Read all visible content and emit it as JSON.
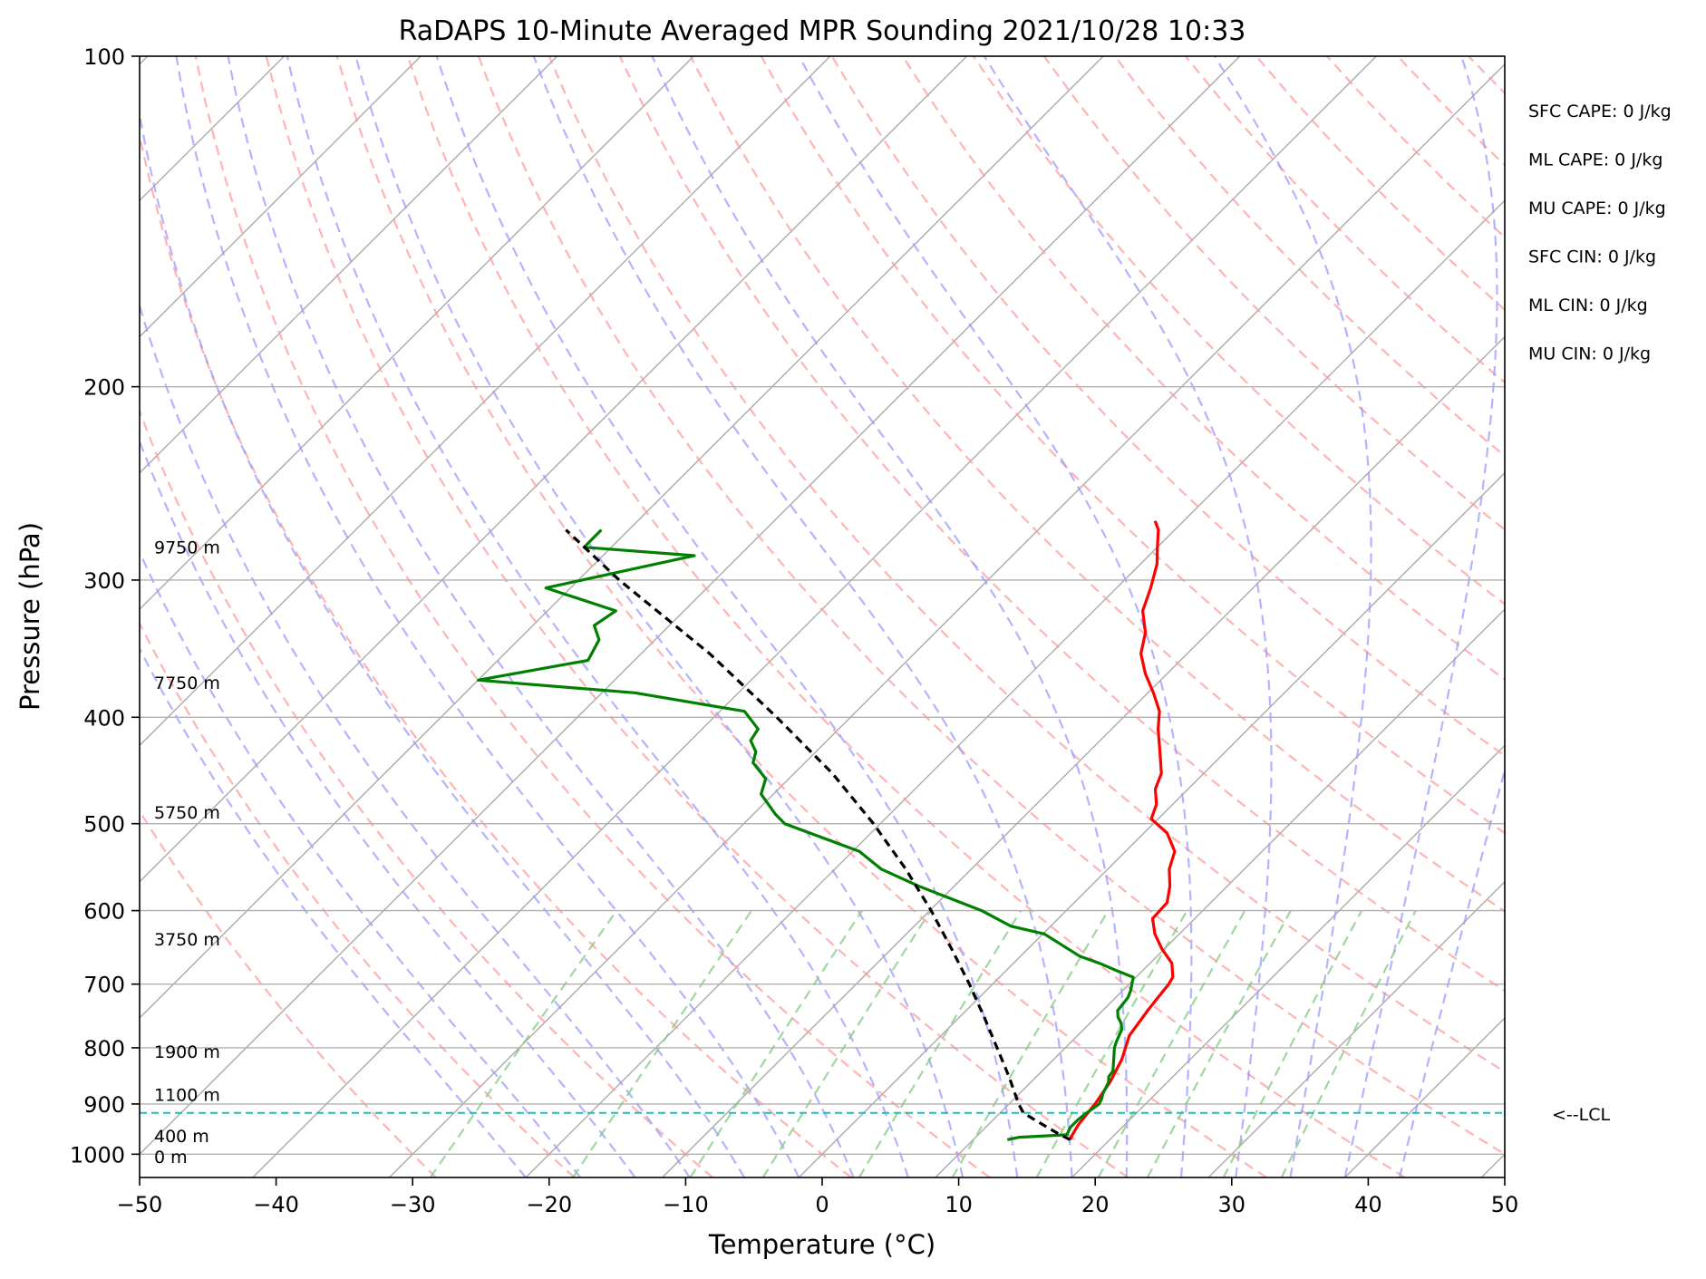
{
  "chart_data": {
    "type": "line",
    "title": "RaDAPS 10-Minute Averaged MPR Sounding 2021/10/28 10:33",
    "xlabel": "Temperature (°C)",
    "ylabel": "Pressure (hPa)",
    "xlim": [
      -50,
      50
    ],
    "ylim": [
      1050,
      100
    ],
    "y_scale": "log",
    "skew": "skew-T",
    "grid": true,
    "x_ticks": [
      -50,
      -40,
      -30,
      -20,
      -10,
      0,
      10,
      20,
      30,
      40,
      50
    ],
    "x_tick_labels": [
      "−50",
      "−40",
      "−30",
      "−20",
      "−10",
      "0",
      "10",
      "20",
      "30",
      "40",
      "50"
    ],
    "y_ticks": [
      100,
      200,
      300,
      400,
      500,
      600,
      700,
      800,
      900,
      1000
    ],
    "y_tick_labels": [
      "100",
      "200",
      "300",
      "400",
      "500",
      "600",
      "700",
      "800",
      "900",
      "1000"
    ],
    "colors": {
      "temperature": "#ff0000",
      "dewpoint": "#008000",
      "parcel": "#000000",
      "isotherm": "#aaaaaa",
      "dry_adiabat": "#ff9999",
      "moist_adiabat": "#9999ff",
      "mixing_ratio": "#88cc88",
      "lcl": "#22bbbb"
    },
    "series": [
      {
        "key": "temperature",
        "p": [
          970,
          960,
          940,
          900,
          860,
          820,
          780,
          740,
          720,
          700,
          690,
          670,
          650,
          630,
          610,
          590,
          570,
          550,
          530,
          510,
          495,
          480,
          465,
          450,
          430,
          410,
          395,
          380,
          365,
          350,
          335,
          320,
          305,
          290,
          280,
          270,
          265
        ],
        "t": [
          17.1,
          16.9,
          16.6,
          16.3,
          15.8,
          15.0,
          13.8,
          13.3,
          13.1,
          12.9,
          12.7,
          11.6,
          9.8,
          8.2,
          6.9,
          6.8,
          5.8,
          4.5,
          3.6,
          1.7,
          -0.5,
          -1.2,
          -2.4,
          -3.1,
          -4.8,
          -6.6,
          -7.8,
          -9.6,
          -11.6,
          -13.4,
          -14.6,
          -16.4,
          -17.5,
          -18.8,
          -20.0,
          -21.2,
          -22.1
        ]
      },
      {
        "key": "dewpoint",
        "p": [
          970,
          965,
          960,
          950,
          945,
          930,
          920,
          900,
          890,
          880,
          860,
          850,
          840,
          800,
          790,
          770,
          760,
          750,
          740,
          720,
          710,
          690,
          680,
          670,
          660,
          630,
          620,
          600,
          590,
          570,
          550,
          530,
          500,
          490,
          470,
          455,
          440,
          430,
          420,
          410,
          395,
          380,
          370,
          355,
          340,
          330,
          320,
          305,
          285,
          280,
          270
        ],
        "t": [
          12.5,
          13.2,
          16.5,
          16.3,
          16.2,
          16.2,
          16.3,
          16.6,
          16.4,
          16.1,
          15.7,
          15.3,
          15.2,
          13.6,
          13.3,
          12.8,
          12.3,
          11.6,
          11.1,
          10.9,
          10.6,
          9.8,
          8.0,
          6.3,
          4.3,
          0.1,
          -2.9,
          -6.2,
          -8.3,
          -12.6,
          -16.6,
          -19.5,
          -27.0,
          -28.4,
          -30.9,
          -31.7,
          -33.8,
          -34.4,
          -35.6,
          -35.9,
          -38.2,
          -47.6,
          -60.0,
          -53.4,
          -54.1,
          -55.5,
          -55.0,
          -61.8,
          -53.3,
          -62.0,
          -62.0
        ]
      },
      {
        "key": "parcel",
        "p": [
          970,
          960,
          940,
          925,
          917,
          900,
          850,
          800,
          750,
          700,
          650,
          600,
          550,
          500,
          450,
          400,
          350,
          300,
          270
        ],
        "t": [
          17.1,
          16.0,
          14.0,
          12.5,
          11.7,
          10.7,
          8.0,
          5.0,
          1.8,
          -1.7,
          -5.6,
          -9.9,
          -14.8,
          -20.5,
          -27.2,
          -35.4,
          -45.0,
          -57.0,
          -64.6
        ]
      }
    ],
    "lcl_pressure": 917,
    "lcl_label": "<--LCL",
    "height_labels": [
      {
        "p": 1005,
        "text": "0 m"
      },
      {
        "p": 962,
        "text": "400 m"
      },
      {
        "p": 882,
        "text": "1100 m"
      },
      {
        "p": 806,
        "text": "1900 m"
      },
      {
        "p": 637,
        "text": "3750 m"
      },
      {
        "p": 488,
        "text": "5750 m"
      },
      {
        "p": 372,
        "text": "7750 m"
      },
      {
        "p": 280,
        "text": "9750 m"
      }
    ],
    "indices": [
      "SFC CAPE: 0 J/kg",
      "ML CAPE: 0 J/kg",
      "MU CAPE: 0 J/kg",
      "SFC CIN: 0 J/kg",
      "ML CIN: 0 J/kg",
      "MU CIN: 0 J/kg"
    ]
  }
}
